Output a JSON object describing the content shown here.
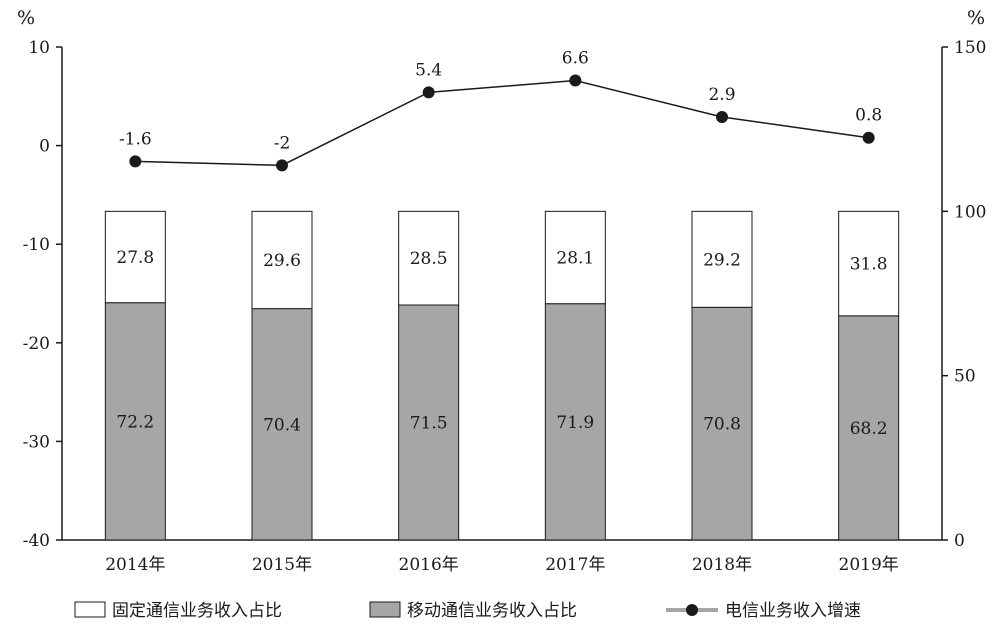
{
  "chart_data": {
    "type": "bar",
    "categories": [
      "2014年",
      "2015年",
      "2016年",
      "2017年",
      "2018年",
      "2019年"
    ],
    "series": [
      {
        "name": "固定通信业务收入占比",
        "kind": "stacked-bar",
        "axis": "right",
        "values": [
          27.8,
          29.6,
          28.5,
          28.1,
          29.2,
          31.8
        ],
        "color": "#ffffff"
      },
      {
        "name": "移动通信业务收入占比",
        "kind": "stacked-bar",
        "axis": "right",
        "values": [
          72.2,
          70.4,
          71.5,
          71.9,
          70.8,
          68.2
        ],
        "color": "#a6a6a6"
      },
      {
        "name": "电信业务收入增速",
        "kind": "line",
        "axis": "left",
        "values": [
          -1.6,
          -2,
          5.4,
          6.6,
          2.9,
          0.8
        ],
        "color": "#1a1a1a"
      }
    ],
    "left_axis": {
      "unit": "%",
      "ylim": [
        -40,
        10
      ],
      "ticks": [
        -40,
        -30,
        -20,
        -10,
        0,
        10
      ]
    },
    "right_axis": {
      "unit": "%",
      "ylim": [
        0,
        150
      ],
      "ticks": [
        0,
        50,
        100,
        150
      ]
    },
    "value_labels": {
      "fixed": [
        "27.8",
        "29.6",
        "28.5",
        "28.1",
        "29.2",
        "31.8"
      ],
      "mobile": [
        "72.2",
        "70.4",
        "71.5",
        "71.9",
        "70.8",
        "68.2"
      ],
      "growth": [
        "-1.6",
        "-2",
        "5.4",
        "6.6",
        "2.9",
        "0.8"
      ]
    },
    "legend": {
      "position": "bottom",
      "items": [
        "固定通信业务收入占比",
        "移动通信业务收入占比",
        "电信业务收入增速"
      ]
    },
    "grid": false
  }
}
